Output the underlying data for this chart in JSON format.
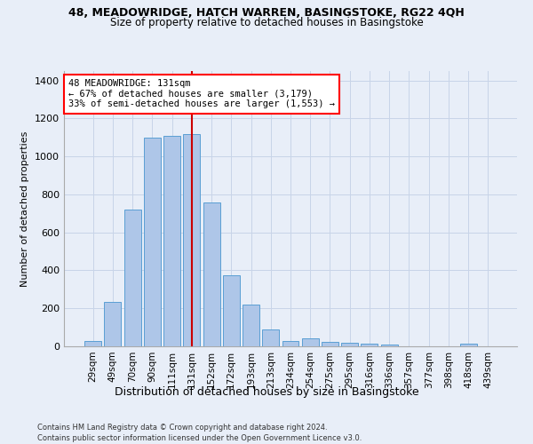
{
  "title1": "48, MEADOWRIDGE, HATCH WARREN, BASINGSTOKE, RG22 4QH",
  "title2": "Size of property relative to detached houses in Basingstoke",
  "xlabel": "Distribution of detached houses by size in Basingstoke",
  "ylabel": "Number of detached properties",
  "footnote1": "Contains HM Land Registry data © Crown copyright and database right 2024.",
  "footnote2": "Contains public sector information licensed under the Open Government Licence v3.0.",
  "categories": [
    "29sqm",
    "49sqm",
    "70sqm",
    "90sqm",
    "111sqm",
    "131sqm",
    "152sqm",
    "172sqm",
    "193sqm",
    "213sqm",
    "234sqm",
    "254sqm",
    "275sqm",
    "295sqm",
    "316sqm",
    "336sqm",
    "357sqm",
    "377sqm",
    "398sqm",
    "418sqm",
    "439sqm"
  ],
  "values": [
    30,
    235,
    720,
    1100,
    1110,
    1120,
    760,
    375,
    220,
    90,
    28,
    40,
    25,
    20,
    15,
    10,
    0,
    0,
    0,
    15,
    0
  ],
  "bar_color": "#aec6e8",
  "bar_edge_color": "#5a9fd4",
  "highlight_index": 5,
  "highlight_color": "#cc0000",
  "ylim": [
    0,
    1450
  ],
  "yticks": [
    0,
    200,
    400,
    600,
    800,
    1000,
    1200,
    1400
  ],
  "annotation_title": "48 MEADOWRIDGE: 131sqm",
  "annotation_line1": "← 67% of detached houses are smaller (3,179)",
  "annotation_line2": "33% of semi-detached houses are larger (1,553) →",
  "bg_color": "#e8eef8",
  "grid_color": "#c8d4e8"
}
